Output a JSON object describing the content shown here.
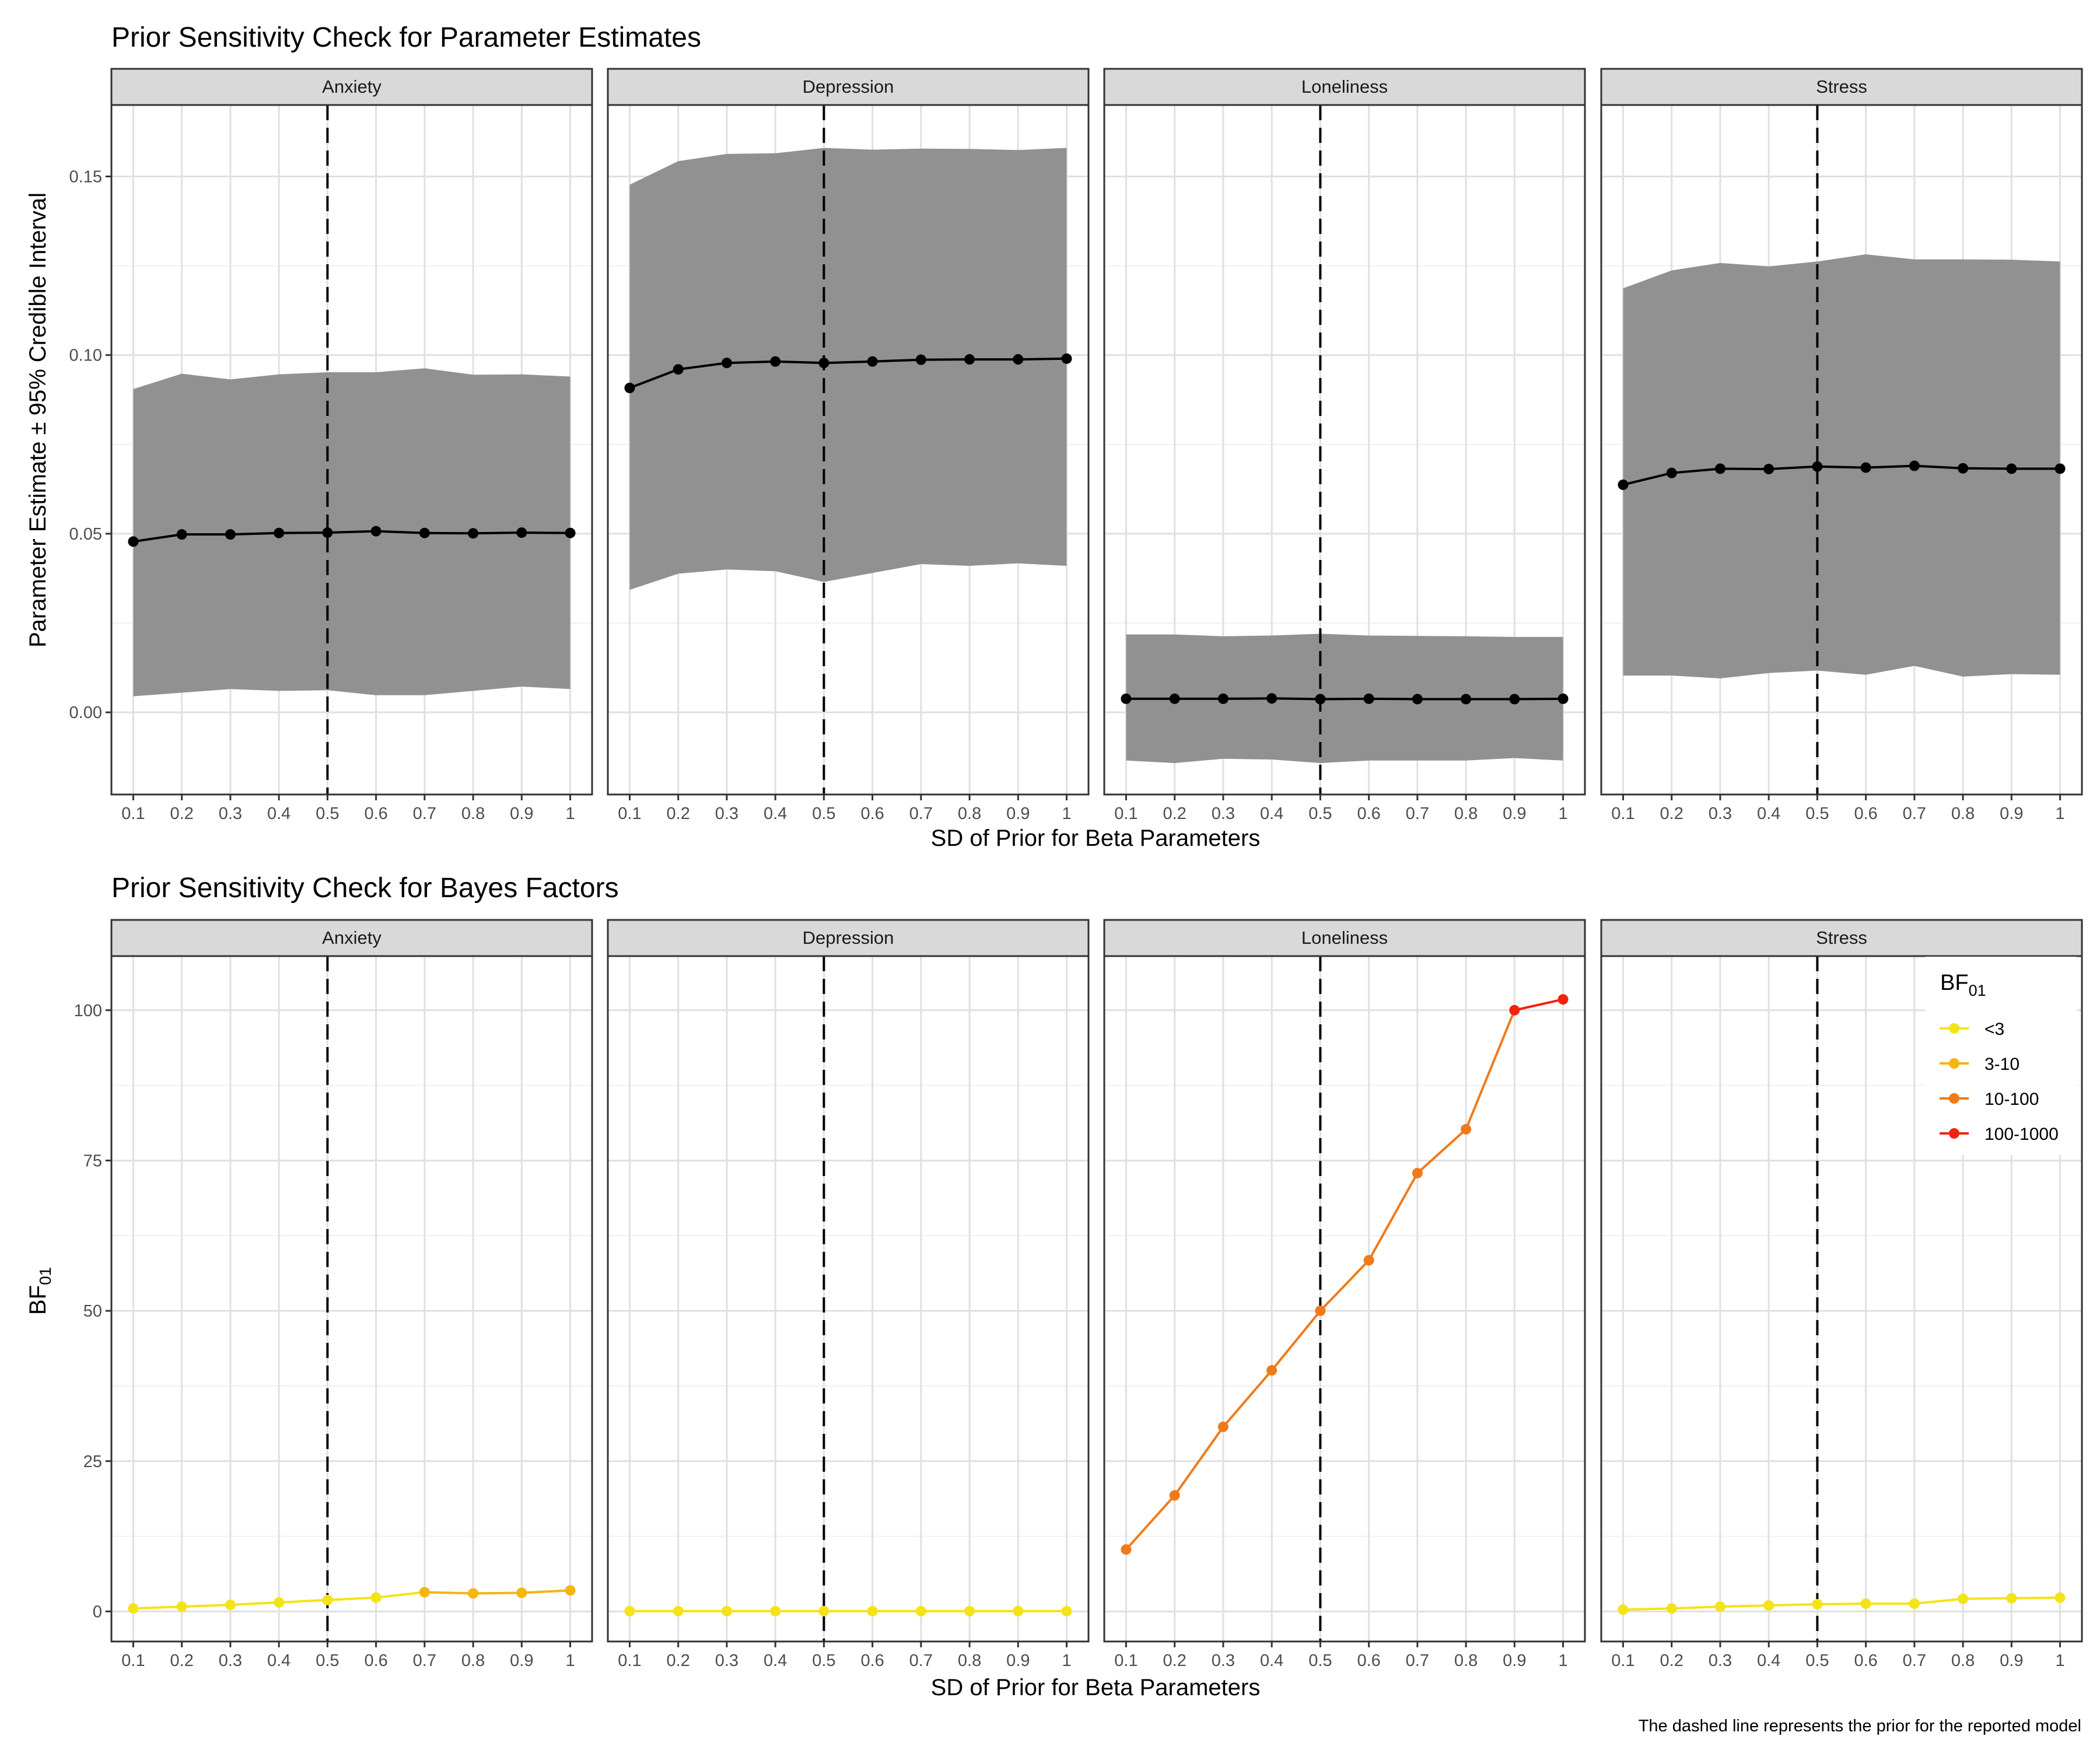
{
  "caption": "The dashed line represents the prior for the reported model",
  "panels": [
    "Anxiety",
    "Depression",
    "Loneliness",
    "Stress"
  ],
  "x_ticks": [
    "0.1",
    "0.2",
    "0.3",
    "0.4",
    "0.5",
    "0.6",
    "0.7",
    "0.8",
    "0.9",
    "1"
  ],
  "reference_line": {
    "x": 0.5,
    "style": "dashed"
  },
  "colors": {
    "panel_border": "#333333",
    "strip_fill": "#d9d9d9",
    "grid_major": "#e0e0e0",
    "grid_minor": "#f0f0f0",
    "ribbon": "#919191",
    "estimate_line": "#000000",
    "bf_lt3": "#f2e418",
    "bf_3_10": "#f5b512",
    "bf_10_100": "#f07a1a",
    "bf_100_1000": "#f2220f"
  },
  "chart_data": [
    {
      "type": "line",
      "title": "Prior Sensitivity Check for Parameter Estimates",
      "xlabel": "SD of Prior for Beta Parameters",
      "ylabel": "Parameter Estimate ± 95% Credible Interval",
      "ylim": [
        -0.023,
        0.17
      ],
      "y_ticks": [
        "0.00",
        "0.05",
        "0.10",
        "0.15"
      ],
      "y_tick_values": [
        0.0,
        0.05,
        0.1,
        0.15
      ],
      "x": [
        0.1,
        0.2,
        0.3,
        0.4,
        0.5,
        0.6,
        0.7,
        0.8,
        0.9,
        1.0
      ],
      "facets": [
        {
          "panel": "Anxiety",
          "estimate": [
            0.0478,
            0.0498,
            0.0498,
            0.0502,
            0.0503,
            0.0507,
            0.0502,
            0.0501,
            0.0503,
            0.0502
          ],
          "lower": [
            0.0045,
            0.0055,
            0.0065,
            0.006,
            0.0062,
            0.0048,
            0.0048,
            0.006,
            0.0072,
            0.0065
          ],
          "upper": [
            0.0905,
            0.0948,
            0.0932,
            0.0946,
            0.0952,
            0.0952,
            0.0963,
            0.0945,
            0.0946,
            0.094
          ]
        },
        {
          "panel": "Depression",
          "estimate": [
            0.0908,
            0.096,
            0.0978,
            0.0982,
            0.0978,
            0.0982,
            0.0987,
            0.0988,
            0.0988,
            0.099
          ],
          "lower": [
            0.0343,
            0.0388,
            0.04,
            0.0395,
            0.0365,
            0.039,
            0.0415,
            0.041,
            0.0417,
            0.041
          ],
          "upper": [
            0.1477,
            0.1543,
            0.1563,
            0.1565,
            0.158,
            0.1575,
            0.1578,
            0.1577,
            0.1574,
            0.158
          ]
        },
        {
          "panel": "Loneliness",
          "estimate": [
            0.0038,
            0.0038,
            0.0038,
            0.0039,
            0.0037,
            0.0038,
            0.0037,
            0.0037,
            0.0037,
            0.0038
          ],
          "lower": [
            -0.0135,
            -0.0142,
            -0.013,
            -0.0132,
            -0.0142,
            -0.0135,
            -0.0135,
            -0.0135,
            -0.0128,
            -0.0135
          ],
          "upper": [
            0.0218,
            0.0218,
            0.0213,
            0.0215,
            0.022,
            0.0215,
            0.0214,
            0.0213,
            0.0211,
            0.0211
          ]
        },
        {
          "panel": "Stress",
          "estimate": [
            0.0637,
            0.067,
            0.0682,
            0.0681,
            0.0688,
            0.0685,
            0.069,
            0.0683,
            0.0682,
            0.0682
          ],
          "lower": [
            0.0103,
            0.0103,
            0.0095,
            0.011,
            0.0117,
            0.0105,
            0.013,
            0.01,
            0.0107,
            0.0105
          ],
          "upper": [
            0.1187,
            0.1237,
            0.1258,
            0.1248,
            0.1262,
            0.1282,
            0.1268,
            0.1268,
            0.1267,
            0.1262
          ]
        }
      ]
    },
    {
      "type": "line",
      "title": "Prior Sensitivity Check for Bayes Factors",
      "xlabel": "SD of Prior for Beta Parameters",
      "ylabel": "BF01",
      "ylim": [
        -5,
        109
      ],
      "y_ticks": [
        "0",
        "25",
        "50",
        "75",
        "100"
      ],
      "y_tick_values": [
        0,
        25,
        50,
        75,
        100
      ],
      "x": [
        0.1,
        0.2,
        0.3,
        0.4,
        0.5,
        0.6,
        0.7,
        0.8,
        0.9,
        1.0
      ],
      "legend": {
        "title": "BF",
        "title_sub": "01",
        "position": "top-right",
        "entries": [
          "<3",
          "3-10",
          "10-100",
          "100-1000"
        ]
      },
      "facets": [
        {
          "panel": "Anxiety",
          "values": [
            0.5,
            0.8,
            1.1,
            1.5,
            1.9,
            2.3,
            3.2,
            3.0,
            3.1,
            3.5
          ],
          "categories": [
            "<3",
            "<3",
            "<3",
            "<3",
            "<3",
            "<3",
            "3-10",
            "3-10",
            "3-10",
            "3-10"
          ]
        },
        {
          "panel": "Depression",
          "values": [
            0.05,
            0.05,
            0.05,
            0.05,
            0.05,
            0.05,
            0.05,
            0.05,
            0.05,
            0.05
          ],
          "categories": [
            "<3",
            "<3",
            "<3",
            "<3",
            "<3",
            "<3",
            "<3",
            "<3",
            "<3",
            "<3"
          ]
        },
        {
          "panel": "Loneliness",
          "values": [
            10.3,
            19.3,
            30.7,
            40.1,
            50.0,
            58.4,
            72.9,
            80.2,
            100.0,
            101.8
          ],
          "categories": [
            "10-100",
            "10-100",
            "10-100",
            "10-100",
            "10-100",
            "10-100",
            "10-100",
            "10-100",
            "100-1000",
            "100-1000"
          ]
        },
        {
          "panel": "Stress",
          "values": [
            0.3,
            0.5,
            0.8,
            1.0,
            1.2,
            1.3,
            1.3,
            2.1,
            2.2,
            2.3
          ],
          "categories": [
            "<3",
            "<3",
            "<3",
            "<3",
            "<3",
            "<3",
            "<3",
            "<3",
            "<3",
            "<3"
          ]
        }
      ]
    }
  ]
}
